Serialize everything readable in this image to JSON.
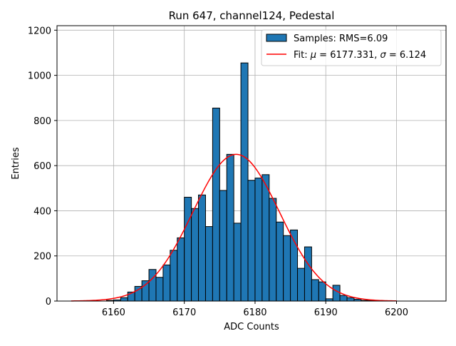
{
  "chart_data": {
    "type": "bar",
    "title": "Run 647, channel124, Pedestal",
    "xlabel": "ADC Counts",
    "ylabel": "Entries",
    "xlim": [
      6152,
      6207
    ],
    "ylim": [
      0,
      1220
    ],
    "xticks": [
      6160,
      6170,
      6180,
      6190,
      6200
    ],
    "yticks": [
      0,
      200,
      400,
      600,
      800,
      1000,
      1200
    ],
    "grid": true,
    "legend_position": "top-right",
    "bar_color": "#1f77b4",
    "bar_edge_color": "#000000",
    "fit_color": "#ff0000",
    "bin_width": 1,
    "bins": [
      {
        "x": 6159,
        "value": 3
      },
      {
        "x": 6160,
        "value": 5
      },
      {
        "x": 6161,
        "value": 15
      },
      {
        "x": 6162,
        "value": 40
      },
      {
        "x": 6163,
        "value": 65
      },
      {
        "x": 6164,
        "value": 90
      },
      {
        "x": 6165,
        "value": 140
      },
      {
        "x": 6166,
        "value": 105
      },
      {
        "x": 6167,
        "value": 160
      },
      {
        "x": 6168,
        "value": 225
      },
      {
        "x": 6169,
        "value": 280
      },
      {
        "x": 6170,
        "value": 460
      },
      {
        "x": 6171,
        "value": 410
      },
      {
        "x": 6172,
        "value": 470
      },
      {
        "x": 6173,
        "value": 330
      },
      {
        "x": 6174,
        "value": 855
      },
      {
        "x": 6175,
        "value": 490
      },
      {
        "x": 6176,
        "value": 650
      },
      {
        "x": 6177,
        "value": 345
      },
      {
        "x": 6178,
        "value": 1055
      },
      {
        "x": 6179,
        "value": 535
      },
      {
        "x": 6180,
        "value": 545
      },
      {
        "x": 6181,
        "value": 560
      },
      {
        "x": 6182,
        "value": 455
      },
      {
        "x": 6183,
        "value": 350
      },
      {
        "x": 6184,
        "value": 290
      },
      {
        "x": 6185,
        "value": 315
      },
      {
        "x": 6186,
        "value": 145
      },
      {
        "x": 6187,
        "value": 240
      },
      {
        "x": 6188,
        "value": 95
      },
      {
        "x": 6189,
        "value": 85
      },
      {
        "x": 6190,
        "value": 10
      },
      {
        "x": 6191,
        "value": 70
      },
      {
        "x": 6192,
        "value": 25
      },
      {
        "x": 6193,
        "value": 15
      },
      {
        "x": 6194,
        "value": 8
      },
      {
        "x": 6195,
        "value": 3
      },
      {
        "x": 6196,
        "value": 2
      }
    ],
    "fit": {
      "mu": 6177.331,
      "sigma": 6.124,
      "amplitude": 650,
      "x_range": [
        6154,
        6200
      ]
    },
    "legend": {
      "samples_label": "Samples: RMS=6.09",
      "fit_label_prefix": "Fit: ",
      "fit_mu_symbol": "μ",
      "fit_mu_text": " = 6177.331, ",
      "fit_sigma_symbol": "σ",
      "fit_sigma_text": " = 6.124"
    }
  }
}
